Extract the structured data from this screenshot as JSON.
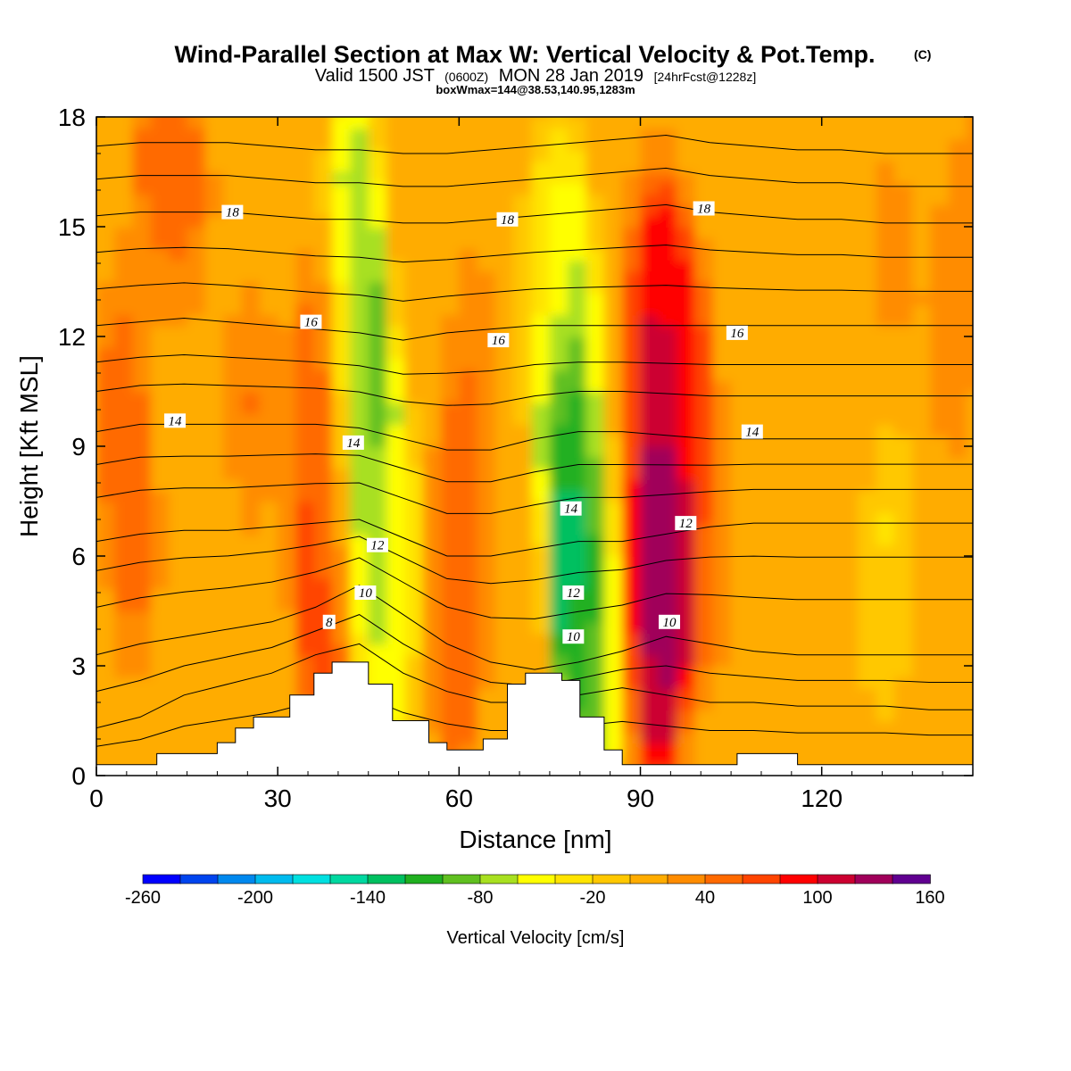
{
  "chart_data": {
    "type": "heatmap",
    "title": "Wind-Parallel Section at Max W: Vertical Velocity & Pot.Temp.",
    "title_mark": "(C)",
    "subtitle": {
      "valid": "Valid 1500 JST",
      "zulu": "(0600Z)",
      "date": "MON 28 Jan 2019",
      "forecast": "[24hrFcst@1228z]"
    },
    "box_info": "boxWmax=144@38.53,140.95,1283m",
    "xlabel": "Distance [nm]",
    "ylabel": "Height [Kft MSL]",
    "xlim": [
      0,
      145
    ],
    "ylim": [
      0,
      18
    ],
    "x_ticks": [
      0,
      30,
      60,
      90,
      120
    ],
    "y_ticks": [
      0,
      3,
      6,
      9,
      12,
      15,
      18
    ],
    "colorbar": {
      "label": "Vertical Velocity [cm/s]",
      "range": [
        -260,
        160
      ],
      "step": 20,
      "tick_labels": [
        -260,
        -200,
        -140,
        -80,
        -20,
        40,
        100,
        160
      ],
      "colors": [
        "#0000ff",
        "#0044ee",
        "#0088ee",
        "#00bbee",
        "#00e0e0",
        "#00d8a0",
        "#00c060",
        "#20b020",
        "#60c020",
        "#a8e020",
        "#ffff00",
        "#ffe400",
        "#ffc800",
        "#ffac00",
        "#ff8c00",
        "#ff6a00",
        "#ff4400",
        "#ff0000",
        "#cc0030",
        "#a0005a",
        "#600090"
      ]
    },
    "velocity_field": [
      {
        "x": 2,
        "z": 10,
        "w": 50
      },
      {
        "x": 5,
        "z": 6,
        "w": 45
      },
      {
        "x": 14,
        "z": 16,
        "w": 42
      },
      {
        "x": 8,
        "z": 17,
        "w": 45
      },
      {
        "x": 24,
        "z": 10,
        "w": 40
      },
      {
        "x": 35,
        "z": 6,
        "w": 62
      },
      {
        "x": 35,
        "z": 11,
        "w": 55
      },
      {
        "x": 37,
        "z": 4,
        "w": 68
      },
      {
        "x": 41,
        "z": 16,
        "w": -70
      },
      {
        "x": 43,
        "z": 11,
        "w": -90
      },
      {
        "x": 44,
        "z": 7,
        "w": -105
      },
      {
        "x": 46,
        "z": 4,
        "w": -60
      },
      {
        "x": 49,
        "z": 6,
        "w": -15
      },
      {
        "x": 58,
        "z": 6,
        "w": 65
      },
      {
        "x": 58,
        "z": 3,
        "w": 45
      },
      {
        "x": 61,
        "z": 11,
        "w": 35
      },
      {
        "x": 72,
        "z": 13,
        "w": -20
      },
      {
        "x": 76,
        "z": 14,
        "w": -40
      },
      {
        "x": 77,
        "z": 10,
        "w": -125
      },
      {
        "x": 78,
        "z": 7,
        "w": -145
      },
      {
        "x": 79,
        "z": 4.5,
        "w": -130
      },
      {
        "x": 81,
        "z": 2,
        "w": -60
      },
      {
        "x": 84,
        "z": 10,
        "w": 30
      },
      {
        "x": 91,
        "z": 13,
        "w": 100
      },
      {
        "x": 92,
        "z": 8,
        "w": 140
      },
      {
        "x": 92,
        "z": 5.5,
        "w": 155
      },
      {
        "x": 91,
        "z": 3,
        "w": 100
      },
      {
        "x": 96,
        "z": 11,
        "w": 75
      },
      {
        "x": 100,
        "z": 6,
        "w": 40
      },
      {
        "x": 110,
        "z": 15,
        "w": 15
      },
      {
        "x": 115,
        "z": 8,
        "w": 12
      },
      {
        "x": 130,
        "z": 6,
        "w": -25
      },
      {
        "x": 130,
        "z": 14,
        "w": 28
      },
      {
        "x": 140,
        "z": 12,
        "w": 40
      },
      {
        "x": 145,
        "z": 16,
        "w": 30
      },
      {
        "x": 125,
        "z": 2,
        "w": 5
      }
    ],
    "terrain": [
      [
        0,
        0.3
      ],
      [
        10,
        0.6
      ],
      [
        20,
        0.9
      ],
      [
        23,
        1.3
      ],
      [
        26,
        1.6
      ],
      [
        32,
        2.2
      ],
      [
        36,
        2.8
      ],
      [
        39,
        3.1
      ],
      [
        45,
        2.5
      ],
      [
        49,
        1.5
      ],
      [
        55,
        0.9
      ],
      [
        58,
        0.7
      ],
      [
        64,
        1.0
      ],
      [
        68,
        2.5
      ],
      [
        71,
        2.8
      ],
      [
        77,
        2.6
      ],
      [
        80,
        1.6
      ],
      [
        84,
        0.7
      ],
      [
        87,
        0.3
      ],
      [
        106,
        0.6
      ],
      [
        116,
        0.3
      ],
      [
        145,
        0.3
      ]
    ],
    "theta_levels": [
      {
        "label": "8",
        "y": [
          1.3,
          1.6,
          2.2,
          2.5,
          2.8,
          3.3,
          3.6,
          2.8,
          2.3,
          2.0,
          2.0,
          2.2,
          2.4,
          2.2,
          2.0,
          2.0,
          1.9,
          1.9,
          1.9,
          1.8,
          1.8
        ],
        "labels": [
          [
            38.5,
            4.2
          ]
        ]
      },
      {
        "label": "10",
        "y": [
          3.3,
          3.6,
          3.8,
          4.0,
          4.2,
          4.6,
          5.2,
          4.4,
          3.6,
          3.1,
          2.9,
          3.1,
          3.4,
          3.8,
          3.6,
          3.4,
          3.3,
          3.3,
          3.3,
          3.3,
          3.3
        ],
        "labels": [
          [
            44.5,
            5.0
          ],
          [
            78.9,
            3.8
          ],
          [
            94.8,
            4.2
          ]
        ]
      },
      {
        "label": "12",
        "y": [
          6.4,
          6.6,
          6.7,
          6.7,
          6.8,
          6.9,
          7.0,
          6.5,
          6.0,
          6.0,
          6.2,
          6.4,
          6.4,
          6.6,
          6.8,
          6.9,
          6.9,
          6.9,
          6.9,
          6.9,
          6.9
        ],
        "labels": [
          [
            46.5,
            6.3
          ],
          [
            78.9,
            5.0
          ],
          [
            97.5,
            6.9
          ]
        ]
      },
      {
        "label": "14",
        "y": [
          9.4,
          9.6,
          9.6,
          9.6,
          9.6,
          9.6,
          9.5,
          9.2,
          8.9,
          8.9,
          9.2,
          9.4,
          9.4,
          9.3,
          9.2,
          9.2,
          9.2,
          9.2,
          9.2,
          9.2,
          9.2
        ],
        "labels": [
          [
            13.0,
            9.7
          ],
          [
            42.5,
            9.1
          ],
          [
            78.5,
            7.3
          ],
          [
            108.5,
            9.4
          ]
        ]
      },
      {
        "label": "16",
        "y": [
          12.3,
          12.4,
          12.5,
          12.4,
          12.3,
          12.2,
          12.1,
          11.9,
          12.1,
          12.2,
          12.3,
          12.3,
          12.3,
          12.3,
          12.3,
          12.3,
          12.3,
          12.3,
          12.3,
          12.3,
          12.3
        ],
        "labels": [
          [
            35.5,
            12.4
          ],
          [
            66.5,
            11.9
          ],
          [
            106.0,
            12.1
          ]
        ]
      },
      {
        "label": "18",
        "y": [
          15.3,
          15.4,
          15.4,
          15.4,
          15.3,
          15.2,
          15.2,
          15.1,
          15.1,
          15.2,
          15.3,
          15.4,
          15.5,
          15.6,
          15.4,
          15.3,
          15.2,
          15.2,
          15.1,
          15.1,
          15.1
        ],
        "labels": [
          [
            22.5,
            15.4
          ],
          [
            68.0,
            15.2
          ],
          [
            100.5,
            15.5
          ]
        ]
      }
    ],
    "theta_extra_levels": [
      0.8,
      2.3,
      4.6,
      5.6,
      7.6,
      8.5,
      10.5,
      11.3,
      13.3,
      14.3,
      16.3,
      17.2
    ],
    "grid": false,
    "legend": "colorbar-bottom"
  }
}
